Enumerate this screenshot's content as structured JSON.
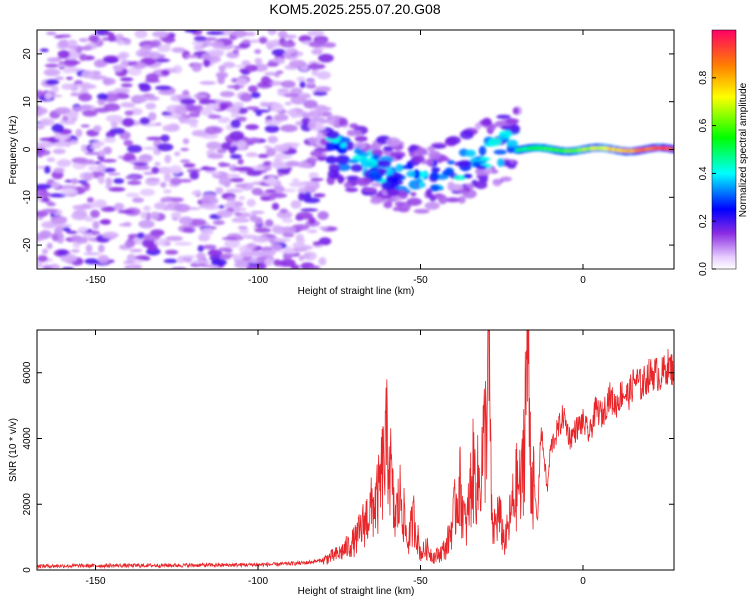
{
  "chart_data": [
    {
      "type": "heatmap",
      "title": "KOM5.2025.255.07.20.G08",
      "xlabel": "Height of straight line (km)",
      "ylabel": "Frequency (Hz)",
      "xlim": [
        -168,
        28
      ],
      "ylim": [
        -25,
        25
      ],
      "x_ticks": [
        -150,
        -100,
        -50,
        0
      ],
      "y_ticks": [
        -20,
        -10,
        0,
        10,
        20
      ],
      "colorbar": {
        "label": "Normalized spectral amplitude",
        "range": [
          0.0,
          1.0
        ],
        "ticks": [
          "0.0",
          "0.2",
          "0.4",
          "0.6",
          "0.8"
        ]
      },
      "features": [
        {
          "description": "diffuse purple noise",
          "x_range": [
            -168,
            -78
          ],
          "y_range": [
            -25,
            25
          ],
          "amplitude": 0.05
        },
        {
          "description": "blue/cyan blobs",
          "x_range": [
            -78,
            -20
          ],
          "y_range": [
            -13,
            7
          ],
          "amplitude": 0.25
        },
        {
          "description": "narrow band near 0 Hz",
          "x_range": [
            -20,
            28
          ],
          "y_range": [
            -2,
            2
          ],
          "amplitude": 0.95
        }
      ]
    },
    {
      "type": "line",
      "xlabel": "Height of straight line (km)",
      "ylabel": "SNR (10 * v/v)",
      "xlim": [
        -168,
        28
      ],
      "ylim": [
        0,
        7300
      ],
      "x_ticks": [
        -150,
        -100,
        -50,
        0
      ],
      "y_ticks": [
        0,
        2000,
        4000,
        6000
      ],
      "color": "#e8262a",
      "x": [
        -168,
        -150,
        -130,
        -110,
        -95,
        -85,
        -80,
        -75,
        -70,
        -66,
        -63,
        -60,
        -58,
        -56,
        -54,
        -52,
        -50,
        -48,
        -46,
        -44,
        -42,
        -40,
        -38,
        -36,
        -34,
        -32,
        -30,
        -29,
        -28,
        -26,
        -24,
        -22,
        -20,
        -19,
        -18,
        -17,
        -16,
        -15,
        -14,
        -13,
        -12,
        -11,
        -10,
        -8,
        -6,
        -4,
        -2,
        0,
        2,
        4,
        6,
        8,
        10,
        12,
        14,
        16,
        18,
        20,
        22,
        24,
        26,
        28
      ],
      "y": [
        120,
        130,
        140,
        150,
        170,
        220,
        300,
        500,
        900,
        1700,
        2200,
        4000,
        1500,
        2300,
        800,
        1600,
        500,
        650,
        400,
        500,
        700,
        1500,
        2600,
        1200,
        3000,
        2600,
        4200,
        6700,
        1100,
        1700,
        800,
        1800,
        2700,
        2300,
        4400,
        7300,
        3000,
        2500,
        1400,
        4300,
        3500,
        2400,
        3700,
        4200,
        4700,
        4000,
        4300,
        4500,
        4100,
        4900,
        4700,
        5300,
        5000,
        5400,
        5300,
        5800,
        5600,
        5900,
        6000,
        5900,
        6200,
        6100
      ]
    }
  ]
}
